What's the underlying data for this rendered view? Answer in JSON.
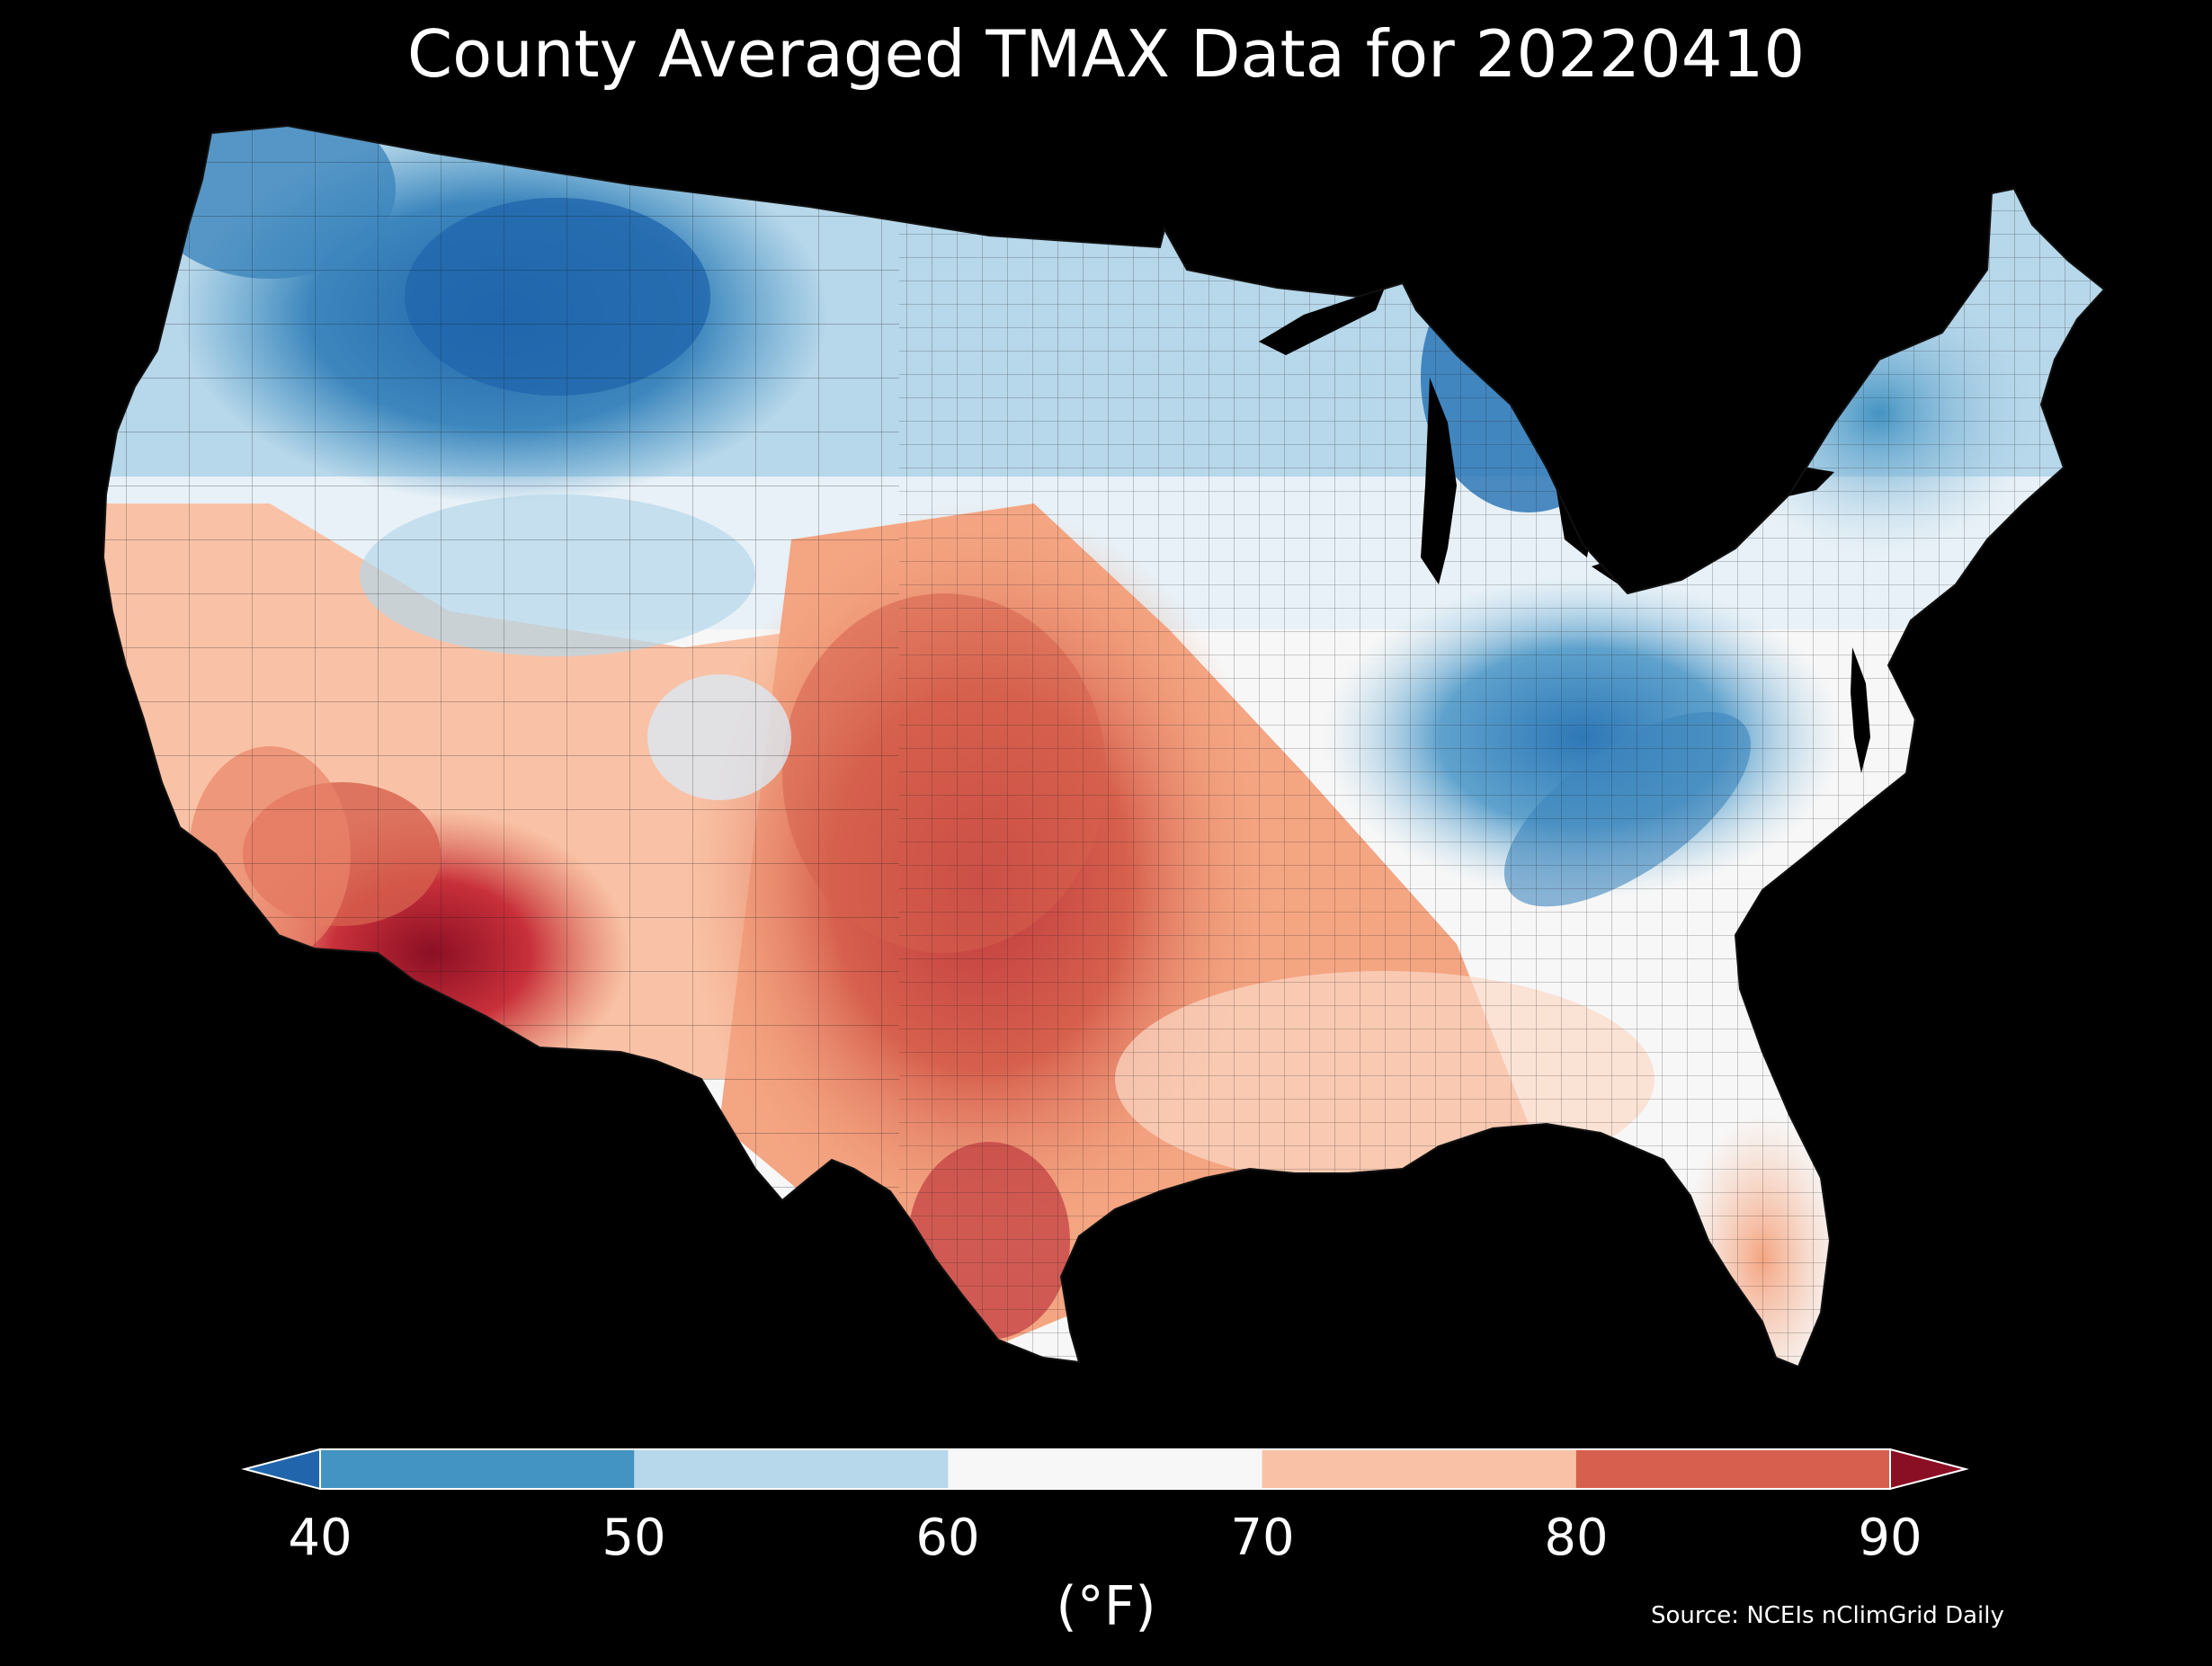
{
  "title": "County Averaged TMAX Data for 20220410",
  "colorbar": {
    "ticks": [
      "40",
      "50",
      "60",
      "70",
      "80",
      "90"
    ],
    "unit": "(°F)",
    "bins": [
      {
        "range": "<40",
        "color": "#2166ac"
      },
      {
        "range": "40-50",
        "color": "#4393c3"
      },
      {
        "range": "50-60",
        "color": "#b7d7ea"
      },
      {
        "range": "60-70",
        "color": "#f7f7f7"
      },
      {
        "range": "70-80",
        "color": "#f9c2a6"
      },
      {
        "range": "80-90",
        "color": "#d6604d"
      },
      {
        "range": ">90",
        "color": "#8b0f24"
      }
    ]
  },
  "source": "Source: NCEIs nClimGrid Daily",
  "map": {
    "region": "contiguous United States counties",
    "variable": "TMAX",
    "date": "20220410",
    "colors": {
      "coldest": "#2166ac",
      "cold": "#4393c3",
      "cool": "#b7d7ea",
      "mild": "#f7f7f7",
      "warm": "#f9c2a6",
      "hot": "#d6604d",
      "hottest": "#8b0f24",
      "background": "#000000",
      "county_border": "#1a1a1a"
    }
  }
}
